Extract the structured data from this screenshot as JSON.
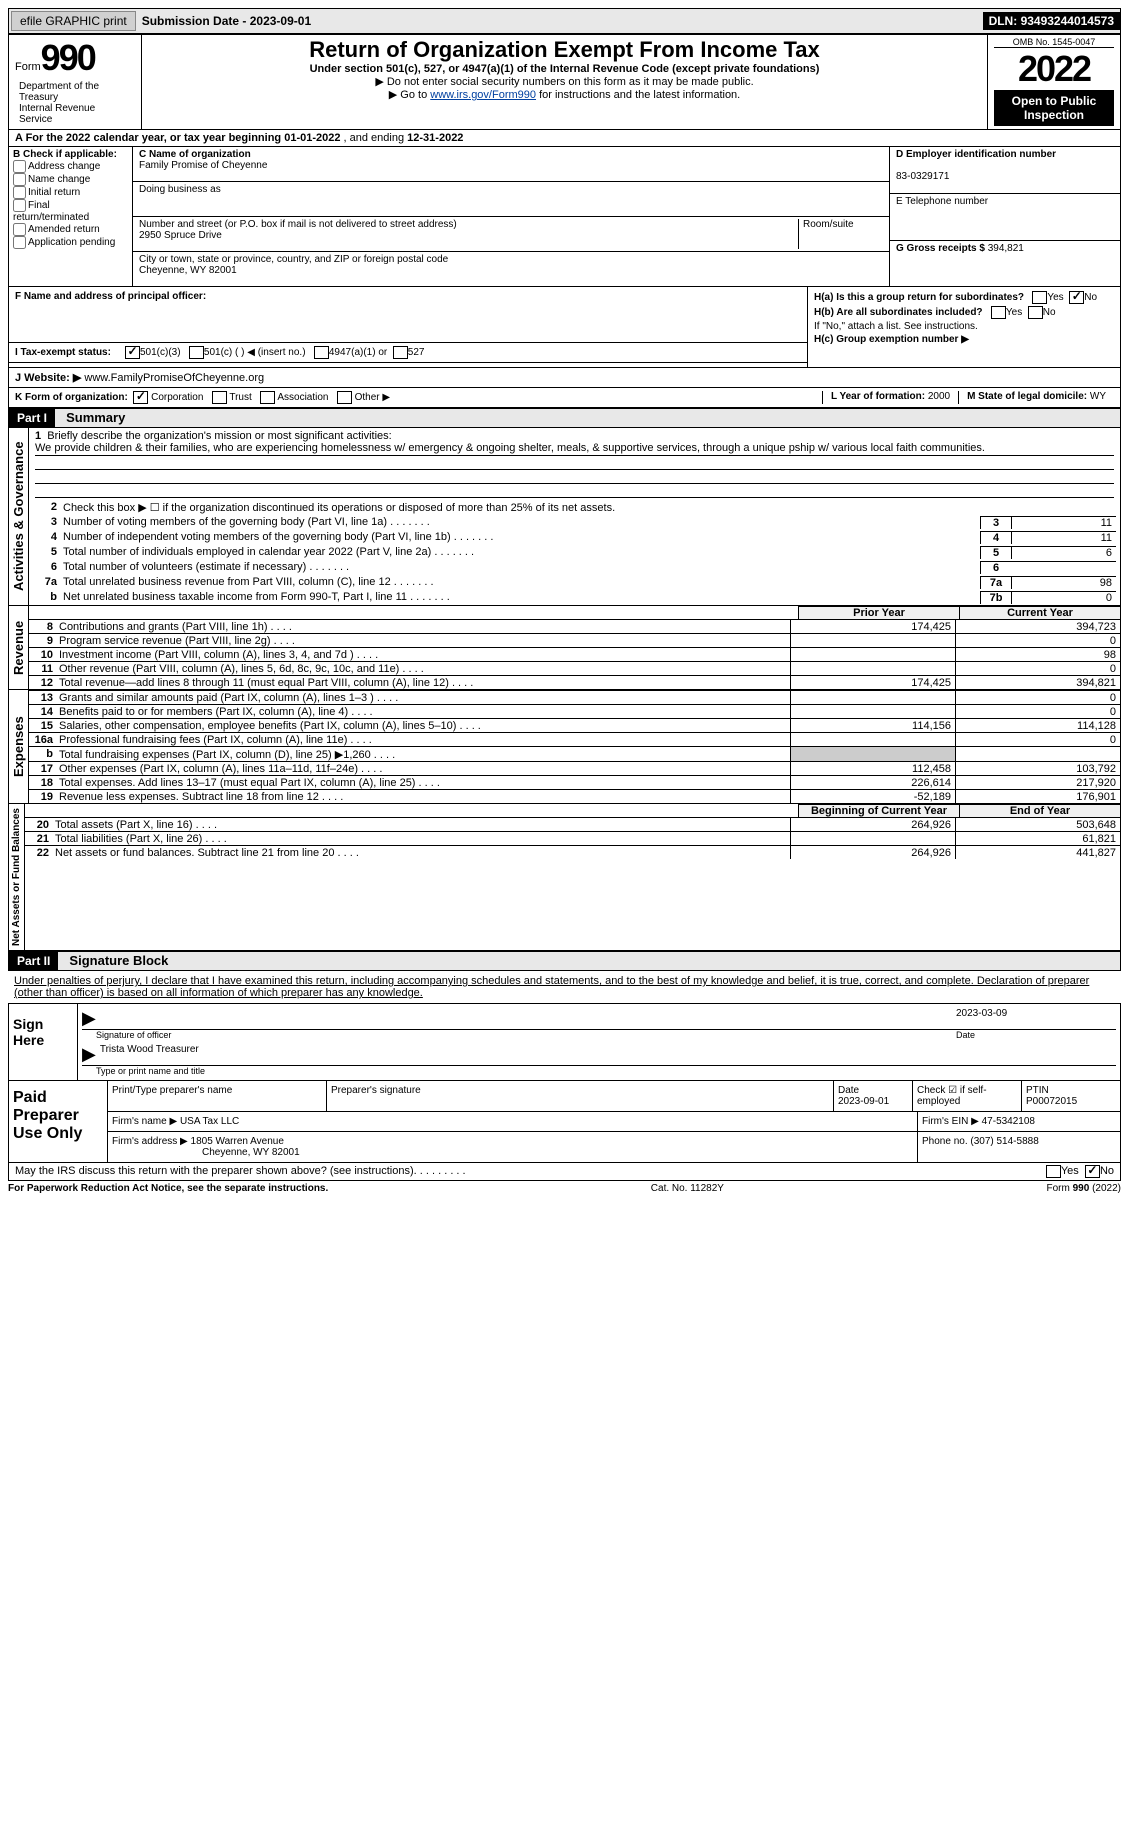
{
  "topbar": {
    "efile": "efile GRAPHIC print",
    "subm_label": "Submission Date - ",
    "subm_date": "2023-09-01",
    "dln_label": "DLN: ",
    "dln": "93493244014573"
  },
  "header": {
    "form_word": "Form",
    "form_num": "990",
    "title": "Return of Organization Exempt From Income Tax",
    "sub": "Under section 501(c), 527, or 4947(a)(1) of the Internal Revenue Code (except private foundations)",
    "arrow1": "▶ Do not enter social security numbers on this form as it may be made public.",
    "arrow2_pre": "▶ Go to ",
    "arrow2_link": "www.irs.gov/Form990",
    "arrow2_post": " for instructions and the latest information.",
    "omb": "OMB No. 1545-0047",
    "year": "2022",
    "open": "Open to Public Inspection",
    "dept": "Department of the Treasury",
    "irs": "Internal Revenue Service"
  },
  "A": {
    "text_pre": "A For the 2022 calendar year, or tax year beginning ",
    "begin": "01-01-2022",
    "mid": " , and ending ",
    "end": "12-31-2022"
  },
  "B": {
    "label": "B Check if applicable:",
    "opts": [
      "Address change",
      "Name change",
      "Initial return",
      "Final return/terminated",
      "Amended return",
      "Application pending"
    ]
  },
  "C": {
    "name_lbl": "C Name of organization",
    "name": "Family Promise of Cheyenne",
    "dba_lbl": "Doing business as",
    "dba": "",
    "street_lbl": "Number and street (or P.O. box if mail is not delivered to street address)",
    "room_lbl": "Room/suite",
    "street": "2950 Spruce Drive",
    "city_lbl": "City or town, state or province, country, and ZIP or foreign postal code",
    "city": "Cheyenne, WY  82001"
  },
  "D": {
    "lbl": "D Employer identification number",
    "val": "83-0329171"
  },
  "E": {
    "lbl": "E Telephone number",
    "val": ""
  },
  "G": {
    "lbl": "G Gross receipts $ ",
    "val": "394,821"
  },
  "F": {
    "lbl": "F Name and address of principal officer:",
    "val": ""
  },
  "H": {
    "a": "H(a)  Is this a group return for subordinates?",
    "a_yes": "Yes",
    "a_no": "No",
    "a_checked": "No",
    "b": "H(b)  Are all subordinates included?",
    "b_yes": "Yes",
    "b_no": "No",
    "b_note": "If \"No,\" attach a list. See instructions.",
    "c": "H(c)  Group exemption number ▶"
  },
  "I": {
    "lbl": "I    Tax-exempt status:",
    "opts": [
      "501(c)(3)",
      "501(c) (   ) ◀ (insert no.)",
      "4947(a)(1) or",
      "527"
    ],
    "checked": 0
  },
  "J": {
    "lbl": "J   Website: ▶ ",
    "val": "www.FamilyPromiseOfCheyenne.org"
  },
  "K": {
    "lbl": "K Form of organization:",
    "opts": [
      "Corporation",
      "Trust",
      "Association",
      "Other ▶"
    ],
    "checked": 0,
    "L_lbl": "L Year of formation: ",
    "L_val": "2000",
    "M_lbl": "M State of legal domicile: ",
    "M_val": "WY"
  },
  "part1": {
    "hdr": "Part I",
    "title": "Summary",
    "side1": "Activities & Governance",
    "side2": "Revenue",
    "side3": "Expenses",
    "side4": "Net Assets or Fund Balances",
    "l1": "Briefly describe the organization's mission or most significant activities:",
    "mission": "We provide children & their families, who are experiencing homelessness w/ emergency & ongoing shelter, meals, & supportive services, through a unique pship w/ various local faith communities.",
    "l2": "Check this box ▶ ☐  if the organization discontinued its operations or disposed of more than 25% of its net assets.",
    "lines_gov": [
      {
        "n": "3",
        "d": "Number of voting members of the governing body (Part VI, line 1a)",
        "box": "3",
        "v": "11"
      },
      {
        "n": "4",
        "d": "Number of independent voting members of the governing body (Part VI, line 1b)",
        "box": "4",
        "v": "11"
      },
      {
        "n": "5",
        "d": "Total number of individuals employed in calendar year 2022 (Part V, line 2a)",
        "box": "5",
        "v": "6"
      },
      {
        "n": "6",
        "d": "Total number of volunteers (estimate if necessary)",
        "box": "6",
        "v": ""
      },
      {
        "n": "7a",
        "d": "Total unrelated business revenue from Part VIII, column (C), line 12",
        "box": "7a",
        "v": "98"
      },
      {
        "n": "b",
        "d": "Net unrelated business taxable income from Form 990-T, Part I, line 11",
        "box": "7b",
        "v": "0"
      }
    ],
    "col_prior": "Prior Year",
    "col_curr": "Current Year",
    "lines_rev": [
      {
        "n": "8",
        "d": "Contributions and grants (Part VIII, line 1h)",
        "p": "174,425",
        "c": "394,723"
      },
      {
        "n": "9",
        "d": "Program service revenue (Part VIII, line 2g)",
        "p": "",
        "c": "0"
      },
      {
        "n": "10",
        "d": "Investment income (Part VIII, column (A), lines 3, 4, and 7d )",
        "p": "",
        "c": "98"
      },
      {
        "n": "11",
        "d": "Other revenue (Part VIII, column (A), lines 5, 6d, 8c, 9c, 10c, and 11e)",
        "p": "",
        "c": "0"
      },
      {
        "n": "12",
        "d": "Total revenue—add lines 8 through 11 (must equal Part VIII, column (A), line 12)",
        "p": "174,425",
        "c": "394,821"
      }
    ],
    "lines_exp": [
      {
        "n": "13",
        "d": "Grants and similar amounts paid (Part IX, column (A), lines 1–3 )",
        "p": "",
        "c": "0"
      },
      {
        "n": "14",
        "d": "Benefits paid to or for members (Part IX, column (A), line 4)",
        "p": "",
        "c": "0"
      },
      {
        "n": "15",
        "d": "Salaries, other compensation, employee benefits (Part IX, column (A), lines 5–10)",
        "p": "114,156",
        "c": "114,128"
      },
      {
        "n": "16a",
        "d": "Professional fundraising fees (Part IX, column (A), line 11e)",
        "p": "",
        "c": "0"
      },
      {
        "n": "b",
        "d": "Total fundraising expenses (Part IX, column (D), line 25) ▶1,260",
        "p": "GRAY",
        "c": "GRAY"
      },
      {
        "n": "17",
        "d": "Other expenses (Part IX, column (A), lines 11a–11d, 11f–24e)",
        "p": "112,458",
        "c": "103,792"
      },
      {
        "n": "18",
        "d": "Total expenses. Add lines 13–17 (must equal Part IX, column (A), line 25)",
        "p": "226,614",
        "c": "217,920"
      },
      {
        "n": "19",
        "d": "Revenue less expenses. Subtract line 18 from line 12",
        "p": "-52,189",
        "c": "176,901"
      }
    ],
    "col_begin": "Beginning of Current Year",
    "col_end": "End of Year",
    "lines_net": [
      {
        "n": "20",
        "d": "Total assets (Part X, line 16)",
        "p": "264,926",
        "c": "503,648"
      },
      {
        "n": "21",
        "d": "Total liabilities (Part X, line 26)",
        "p": "",
        "c": "61,821"
      },
      {
        "n": "22",
        "d": "Net assets or fund balances. Subtract line 21 from line 20",
        "p": "264,926",
        "c": "441,827"
      }
    ]
  },
  "part2": {
    "hdr": "Part II",
    "title": "Signature Block",
    "decl": "Under penalties of perjury, I declare that I have examined this return, including accompanying schedules and statements, and to the best of my knowledge and belief, it is true, correct, and complete. Declaration of preparer (other than officer) is based on all information of which preparer has any knowledge.",
    "sign_lbl": "Sign Here",
    "sig_officer": "Signature of officer",
    "sig_date": "2023-03-09",
    "date_lbl": "Date",
    "officer_name": "Trista Wood  Treasurer",
    "type_name_lbl": "Type or print name and title",
    "paid_lbl": "Paid Preparer Use Only",
    "prep_name_lbl": "Print/Type preparer's name",
    "prep_sig_lbl": "Preparer's signature",
    "prep_date_lbl": "Date",
    "prep_date": "2023-09-01",
    "self_emp": "Check ☑ if self-employed",
    "ptin_lbl": "PTIN",
    "ptin": "P00072015",
    "firm_name_lbl": "Firm's name    ▶ ",
    "firm_name": "USA Tax LLC",
    "firm_ein_lbl": "Firm's EIN ▶ ",
    "firm_ein": "47-5342108",
    "firm_addr_lbl": "Firm's address ▶ ",
    "firm_addr": "1805 Warren Avenue",
    "firm_city": "Cheyenne, WY  82001",
    "phone_lbl": "Phone no. ",
    "phone": "(307) 514-5888"
  },
  "footer": {
    "may": "May the IRS discuss this return with the preparer shown above? (see instructions)",
    "yes": "Yes",
    "no": "No",
    "checked": "No",
    "pra": "For Paperwork Reduction Act Notice, see the separate instructions.",
    "cat": "Cat. No. 11282Y",
    "form": "Form 990 (2022)"
  }
}
